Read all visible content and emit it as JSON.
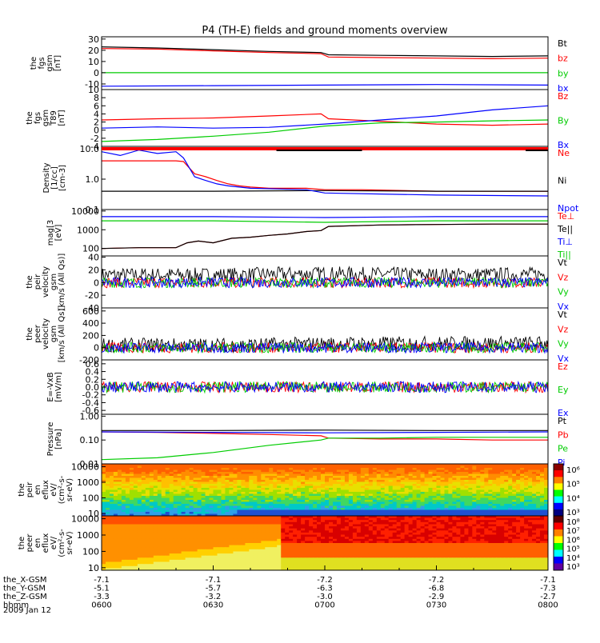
{
  "title": "P4 (TH-E) fields and ground moments overview",
  "chart_data": [
    {
      "type": "line",
      "ylabel": [
        "the",
        "fgs",
        "gsm",
        "[nT]"
      ],
      "yticks": [
        "30",
        "20",
        "10",
        "0",
        "-10"
      ],
      "ylim": [
        -15,
        32
      ],
      "scale": "linear",
      "legend": [
        {
          "label": "Bt",
          "color": "#000000"
        },
        {
          "label": "bz",
          "color": "#ff0000"
        },
        {
          "label": "by",
          "color": "#00cc00"
        },
        {
          "label": "bx",
          "color": "#0000ff"
        }
      ],
      "series": [
        {
          "name": "Bt",
          "color": "#000000",
          "x": [
            0,
            15,
            30,
            45,
            59,
            61,
            75,
            90,
            105,
            120
          ],
          "y": [
            23,
            22,
            20.5,
            19,
            18,
            16,
            15.5,
            15,
            14.5,
            15
          ]
        },
        {
          "name": "bz",
          "color": "#ff0000",
          "x": [
            0,
            15,
            30,
            45,
            59,
            61,
            75,
            90,
            105,
            120
          ],
          "y": [
            21.5,
            21,
            19.5,
            18,
            17,
            14,
            13.5,
            13,
            12.5,
            13
          ]
        },
        {
          "name": "by",
          "color": "#00cc00",
          "x": [
            0,
            30,
            60,
            90,
            120
          ],
          "y": [
            0,
            0,
            0,
            0,
            0
          ]
        },
        {
          "name": "bx",
          "color": "#0000ff",
          "x": [
            0,
            30,
            60,
            90,
            120
          ],
          "y": [
            -12,
            -11.5,
            -11,
            -10.5,
            -11
          ]
        }
      ]
    },
    {
      "type": "line",
      "ylabel": [
        "the",
        "fgs",
        "gsm",
        "T89",
        "[nT]"
      ],
      "yticks": [
        "10",
        "8",
        "6",
        "4",
        "2",
        "0",
        "-2",
        "-4"
      ],
      "ylim": [
        -4,
        10
      ],
      "scale": "linear",
      "legend": [
        {
          "label": "Bz",
          "color": "#ff0000"
        },
        {
          "label": "By",
          "color": "#00cc00"
        },
        {
          "label": "Bx",
          "color": "#0000ff"
        }
      ],
      "series": [
        {
          "name": "Bz",
          "color": "#ff0000",
          "x": [
            0,
            15,
            30,
            45,
            59,
            61,
            75,
            90,
            105,
            120
          ],
          "y": [
            2.5,
            2.8,
            3,
            3.5,
            4,
            2.8,
            2.2,
            1.5,
            1.2,
            1.5
          ]
        },
        {
          "name": "By",
          "color": "#00cc00",
          "x": [
            0,
            15,
            30,
            45,
            60,
            75,
            90,
            105,
            120
          ],
          "y": [
            -2.8,
            -2.3,
            -1.5,
            -0.5,
            1,
            1.8,
            2,
            2.3,
            2.5
          ]
        },
        {
          "name": "Bx",
          "color": "#0000ff",
          "x": [
            0,
            15,
            30,
            45,
            60,
            75,
            90,
            105,
            120
          ],
          "y": [
            0.5,
            0.8,
            0.5,
            0.7,
            1.5,
            2.5,
            3.5,
            5,
            6
          ]
        }
      ]
    },
    {
      "type": "line",
      "ylabel": [
        "Density",
        "[1/cc]",
        "[cm-3]"
      ],
      "yticks": [
        "10.0",
        "1.0",
        "0.1"
      ],
      "ylim": [
        0.1,
        12
      ],
      "scale": "log",
      "legend": [
        {
          "label": "Ne",
          "color": "#ff0000"
        },
        {
          "label": "Ni",
          "color": "#000000"
        },
        {
          "label": "Npot",
          "color": "#0000ff"
        }
      ],
      "series": [
        {
          "name": "Ne",
          "color": "#ff0000",
          "x": [
            0,
            10,
            20,
            22,
            25,
            28,
            31,
            34,
            37,
            40,
            45,
            55,
            60,
            70,
            90,
            120
          ],
          "y": [
            4,
            4,
            4,
            3.8,
            1.5,
            1.2,
            0.9,
            0.7,
            0.6,
            0.55,
            0.5,
            0.5,
            0.45,
            0.45,
            0.4,
            0.4
          ]
        },
        {
          "name": "Ni",
          "color": "#000000",
          "x": [
            0,
            30,
            60,
            90,
            120
          ],
          "y": [
            0.4,
            0.4,
            0.42,
            0.4,
            0.4
          ]
        },
        {
          "name": "Npot",
          "color": "#0000ff",
          "x": [
            0,
            5,
            10,
            15,
            20,
            22,
            25,
            28,
            31,
            34,
            40,
            55,
            60,
            90,
            120
          ],
          "y": [
            8,
            6,
            9,
            7,
            8,
            5,
            1.2,
            0.9,
            0.7,
            0.6,
            0.5,
            0.45,
            0.35,
            0.3,
            0.28
          ]
        }
      ]
    },
    {
      "type": "line",
      "ylabel": [
        "mag[3",
        "[eV]"
      ],
      "yticks": [
        "10000",
        "1000",
        "100"
      ],
      "ylim": [
        40,
        12000
      ],
      "scale": "log",
      "legend": [
        {
          "label": "Te⊥",
          "color": "#ff0000"
        },
        {
          "label": "Te||",
          "color": "#000000"
        },
        {
          "label": "Ti⊥",
          "color": "#0000ff"
        },
        {
          "label": "Ti||",
          "color": "#00cc00"
        }
      ],
      "series": [
        {
          "name": "Te⊥",
          "color": "#ff0000",
          "x": [
            0,
            10,
            20,
            23,
            26,
            30,
            35,
            40,
            45,
            50,
            55,
            59,
            61,
            75,
            90,
            105,
            120
          ],
          "y": [
            100,
            110,
            110,
            200,
            250,
            200,
            350,
            400,
            500,
            600,
            800,
            900,
            1500,
            1800,
            1900,
            2000,
            2000
          ]
        },
        {
          "name": "Te||",
          "color": "#000000",
          "x": [
            0,
            10,
            20,
            23,
            26,
            30,
            35,
            40,
            45,
            50,
            55,
            59,
            61,
            75,
            90,
            105,
            120
          ],
          "y": [
            100,
            110,
            110,
            200,
            250,
            200,
            350,
            400,
            500,
            600,
            800,
            900,
            1500,
            1800,
            1900,
            2000,
            2000
          ]
        },
        {
          "name": "Ti⊥",
          "color": "#0000ff",
          "x": [
            0,
            30,
            60,
            90,
            120
          ],
          "y": [
            5000,
            5000,
            4500,
            5000,
            5000
          ]
        },
        {
          "name": "Ti||",
          "color": "#00cc00",
          "x": [
            0,
            30,
            60,
            90,
            120
          ],
          "y": [
            3000,
            3000,
            2500,
            3000,
            3000
          ]
        }
      ]
    },
    {
      "type": "line",
      "ylabel": [
        "the",
        "peir",
        "velocity",
        "gsm",
        "[km/s (All Qs)]"
      ],
      "yticks": [
        "40",
        "20",
        "0",
        "-20",
        "-40"
      ],
      "ylim": [
        -40,
        42
      ],
      "scale": "linear",
      "noise": true,
      "legend": [
        {
          "label": "Vt",
          "color": "#000000"
        },
        {
          "label": "Vz",
          "color": "#ff0000"
        },
        {
          "label": "Vy",
          "color": "#00cc00"
        },
        {
          "label": "Vx",
          "color": "#0000ff"
        }
      ],
      "series": [
        {
          "name": "Vt",
          "color": "#000000",
          "x": [
            0,
            30,
            60,
            90,
            120
          ],
          "y": [
            12,
            12,
            14,
            12,
            13
          ]
        },
        {
          "name": "Vz",
          "color": "#ff0000",
          "x": [
            0,
            30,
            60,
            90,
            120
          ],
          "y": [
            0,
            0,
            0,
            0,
            0
          ]
        },
        {
          "name": "Vy",
          "color": "#00cc00",
          "x": [
            0,
            30,
            60,
            90,
            120
          ],
          "y": [
            0,
            0,
            0,
            0,
            0
          ]
        },
        {
          "name": "Vx",
          "color": "#0000ff",
          "x": [
            0,
            30,
            60,
            90,
            120
          ],
          "y": [
            0,
            0,
            0,
            0,
            0
          ]
        }
      ]
    },
    {
      "type": "line",
      "ylabel": [
        "the",
        "peer",
        "velocity",
        "gsm",
        "[km/s (All Qs)]"
      ],
      "yticks": [
        "600",
        "400",
        "200",
        "0",
        "-200"
      ],
      "ylim": [
        -200,
        650
      ],
      "scale": "linear",
      "noise": true,
      "legend": [
        {
          "label": "Vt",
          "color": "#000000"
        },
        {
          "label": "Vz",
          "color": "#ff0000"
        },
        {
          "label": "Vy",
          "color": "#00cc00"
        },
        {
          "label": "Vx",
          "color": "#0000ff"
        }
      ],
      "series": [
        {
          "name": "Vt",
          "color": "#000000",
          "x": [
            0,
            30,
            60,
            90,
            120
          ],
          "y": [
            40,
            40,
            60,
            70,
            70
          ]
        },
        {
          "name": "Vz",
          "color": "#ff0000",
          "x": [
            0,
            30,
            60,
            90,
            120
          ],
          "y": [
            0,
            0,
            0,
            0,
            0
          ]
        },
        {
          "name": "Vy",
          "color": "#00cc00",
          "x": [
            0,
            30,
            60,
            90,
            120
          ],
          "y": [
            0,
            0,
            0,
            0,
            0
          ]
        },
        {
          "name": "Vx",
          "color": "#0000ff",
          "x": [
            0,
            30,
            60,
            90,
            120
          ],
          "y": [
            0,
            0,
            0,
            0,
            0
          ]
        }
      ]
    },
    {
      "type": "line",
      "ylabel": [
        "E=-VxB",
        "[mV/m]"
      ],
      "yticks": [
        "0.6",
        "0.4",
        "0.2",
        "0.0",
        "-0.2",
        "-0.4",
        "-0.6"
      ],
      "ylim": [
        -0.7,
        0.7
      ],
      "scale": "linear",
      "noise": true,
      "legend": [
        {
          "label": "Ez",
          "color": "#ff0000"
        },
        {
          "label": "Ey",
          "color": "#00cc00"
        },
        {
          "label": "Ex",
          "color": "#0000ff"
        }
      ],
      "series": [
        {
          "name": "Ez",
          "color": "#ff0000",
          "x": [
            0,
            30,
            60,
            90,
            120
          ],
          "y": [
            0,
            0,
            0,
            0,
            0
          ]
        },
        {
          "name": "Ey",
          "color": "#00cc00",
          "x": [
            0,
            30,
            60,
            90,
            120
          ],
          "y": [
            0,
            0,
            0,
            0,
            0
          ]
        },
        {
          "name": "Ex",
          "color": "#0000ff",
          "x": [
            0,
            30,
            60,
            90,
            120
          ],
          "y": [
            0,
            0,
            0,
            0,
            0
          ]
        }
      ]
    },
    {
      "type": "line",
      "ylabel": [
        "Pressure",
        "[nPa]"
      ],
      "yticks": [
        "1.00",
        "0.10",
        "0.01"
      ],
      "ylim": [
        0.01,
        1.2
      ],
      "scale": "log",
      "legend": [
        {
          "label": "Pt",
          "color": "#000000"
        },
        {
          "label": "Pb",
          "color": "#ff0000"
        },
        {
          "label": "Pe",
          "color": "#00cc00"
        },
        {
          "label": "Pi",
          "color": "#0000ff"
        }
      ],
      "series": [
        {
          "name": "Pt",
          "color": "#000000",
          "x": [
            0,
            30,
            60,
            90,
            120
          ],
          "y": [
            0.25,
            0.25,
            0.26,
            0.25,
            0.25
          ]
        },
        {
          "name": "Pb",
          "color": "#ff0000",
          "x": [
            0,
            15,
            30,
            45,
            59,
            61,
            75,
            90,
            105,
            120
          ],
          "y": [
            0.22,
            0.21,
            0.19,
            0.17,
            0.15,
            0.12,
            0.11,
            0.11,
            0.1,
            0.1
          ]
        },
        {
          "name": "Pe",
          "color": "#00cc00",
          "x": [
            0,
            15,
            30,
            45,
            59,
            61,
            75,
            90,
            105,
            120
          ],
          "y": [
            0.015,
            0.018,
            0.03,
            0.06,
            0.1,
            0.12,
            0.12,
            0.13,
            0.13,
            0.13
          ]
        },
        {
          "name": "Pi",
          "color": "#0000ff",
          "x": [
            0,
            30,
            60,
            90,
            120
          ],
          "y": [
            0.22,
            0.21,
            0.2,
            0.21,
            0.22
          ]
        }
      ]
    },
    {
      "type": "heatmap",
      "ylabel": [
        "the",
        "peir",
        "en",
        "eflux",
        "eV/",
        "(cm²-s-",
        "sr-eV)"
      ],
      "yticks": [
        "10000",
        "1000",
        "100",
        "10"
      ],
      "ylim": [
        7,
        15000
      ],
      "scale": "log",
      "colorbar_ticks": [
        "10⁶",
        "10⁵",
        "10⁴",
        "10³"
      ],
      "profile": "ion"
    },
    {
      "type": "heatmap",
      "ylabel": [
        "the",
        "peer",
        "en",
        "eflux",
        "eV/",
        "(cm²-s-",
        "sr-eV)"
      ],
      "yticks": [
        "10000",
        "1000",
        "100",
        "10"
      ],
      "ylim": [
        7,
        15000
      ],
      "scale": "log",
      "colorbar_ticks": [
        "10⁸",
        "10⁷",
        "10⁶",
        "10⁵",
        "10⁴",
        "10³"
      ],
      "profile": "electron"
    }
  ],
  "footer": {
    "rows": [
      {
        "label": "the_X-GSM",
        "values": [
          "-7.1",
          "-7.1",
          "-7.2",
          "-7.2",
          "-7.1"
        ]
      },
      {
        "label": "the_Y-GSM",
        "values": [
          "-5.1",
          "-5.7",
          "-6.3",
          "-6.8",
          "-7.3"
        ]
      },
      {
        "label": "the_Z-GSM",
        "values": [
          "-3.3",
          "-3.2",
          "-3.0",
          "-2.9",
          "-2.7"
        ]
      },
      {
        "label": "hhmm",
        "values": [
          "0600",
          "0630",
          "0700",
          "0730",
          "0800"
        ]
      }
    ],
    "date": "2009 Jan 12"
  }
}
